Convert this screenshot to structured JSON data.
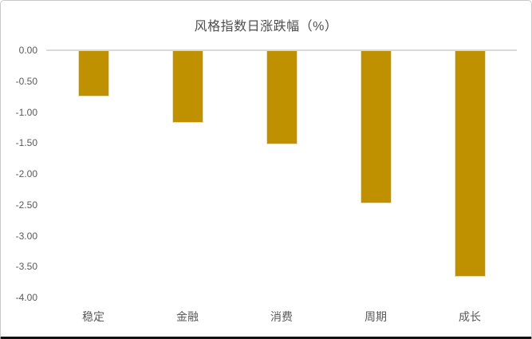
{
  "chart_data": {
    "type": "bar",
    "title": "风格指数日涨跌幅（%）",
    "categories": [
      "稳定",
      "金融",
      "消费",
      "周期",
      "成长"
    ],
    "values": [
      -0.73,
      -1.16,
      -1.51,
      -2.47,
      -3.65
    ],
    "xlabel": "",
    "ylabel": "",
    "ylim": [
      0,
      -4
    ],
    "ytick_labels": [
      "0.00",
      "-0.50",
      "-1.00",
      "-1.50",
      "-2.00",
      "-2.50",
      "-3.00",
      "-3.50",
      "-4.00"
    ],
    "grid": false,
    "legend_position": "none",
    "bar_color": "#bf9000",
    "bar_edge_color": "#ece0b5",
    "zero_line_color": "#d9d9d9",
    "text_color": "#595959"
  }
}
